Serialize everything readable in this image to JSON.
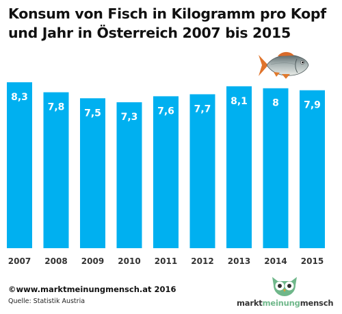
{
  "title_line1": "Konsum von Fisch in Kilogramm pro Kopf",
  "title_line2": "und Jahr in Österreich 2007 bis 2015",
  "chart_data": {
    "type": "bar",
    "categories": [
      "2007",
      "2008",
      "2009",
      "2010",
      "2011",
      "2012",
      "2013",
      "2014",
      "2015"
    ],
    "values": [
      8.3,
      7.8,
      7.5,
      7.3,
      7.6,
      7.7,
      8.1,
      8.0,
      7.9
    ],
    "value_labels": [
      "8,3",
      "7,8",
      "7,5",
      "7,3",
      "7,6",
      "7,7",
      "8,1",
      "8",
      "7,9"
    ],
    "ylim": [
      0,
      8.3
    ],
    "bar_color": "#00b0f0",
    "grid": false,
    "legend": "none"
  },
  "footer": {
    "copyright": "©www.marktmeinungmensch.at 2016",
    "source": "Quelle: Statistik Austria"
  },
  "logo": {
    "word1": "markt",
    "word2": "meinung",
    "word3": "mensch",
    "icon": "owl-icon",
    "accent_color": "#6fb78a"
  },
  "illustration": {
    "icon": "fish-icon"
  }
}
